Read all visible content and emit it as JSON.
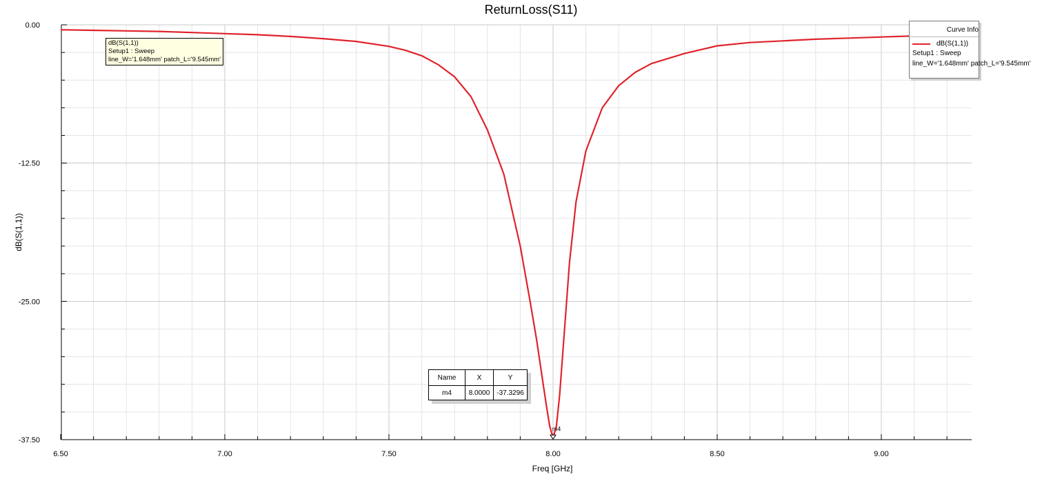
{
  "colors": {
    "trace": "#e0222c",
    "grid_major": "#c8c8c8",
    "grid_minor": "#e4e4e4",
    "note_bg": "#ffffe1"
  },
  "chart_data": {
    "type": "line",
    "title": "ReturnLoss(S11)",
    "xlabel": "Freq [GHz]",
    "ylabel": "dB(S(1,1))",
    "xlim": [
      6.5,
      9.3
    ],
    "ylim": [
      -37.5,
      0.0
    ],
    "x_ticks": [
      "6.50",
      "7.00",
      "7.50",
      "8.00",
      "8.50",
      "9.00"
    ],
    "y_ticks": [
      "0.00",
      "-12.50",
      "-25.00",
      "-37.50"
    ],
    "grid": true,
    "legend_position": "top-right",
    "series": [
      {
        "name": "dB(S(1,1))",
        "x": [
          6.5,
          6.6,
          6.7,
          6.8,
          6.9,
          7.0,
          7.1,
          7.2,
          7.3,
          7.4,
          7.5,
          7.55,
          7.6,
          7.65,
          7.7,
          7.75,
          7.8,
          7.85,
          7.9,
          7.93,
          7.95,
          7.97,
          7.98,
          7.99,
          8.0,
          8.01,
          8.02,
          8.03,
          8.05,
          8.07,
          8.1,
          8.15,
          8.2,
          8.25,
          8.3,
          8.4,
          8.5,
          8.6,
          8.7,
          8.8,
          8.9,
          9.0,
          9.1,
          9.2,
          9.3
        ],
        "values": [
          -0.45,
          -0.5,
          -0.55,
          -0.6,
          -0.7,
          -0.8,
          -0.9,
          -1.05,
          -1.25,
          -1.5,
          -1.95,
          -2.3,
          -2.8,
          -3.6,
          -4.7,
          -6.5,
          -9.5,
          -13.5,
          -20.0,
          -25.0,
          -28.5,
          -32.5,
          -34.5,
          -36.3,
          -37.33,
          -36.3,
          -33.5,
          -29.5,
          -21.5,
          -16.0,
          -11.4,
          -7.5,
          -5.5,
          -4.3,
          -3.5,
          -2.6,
          -1.9,
          -1.6,
          -1.45,
          -1.3,
          -1.2,
          -1.1,
          -1.0,
          -0.9,
          -0.85
        ]
      }
    ],
    "marker": {
      "name": "m4",
      "x": 8.0,
      "y": -37.3296
    }
  },
  "note": {
    "line1": "dB(S(1,1))",
    "line2": "Setup1 : Sweep",
    "line3": "line_W='1.648mm' patch_L='9.545mm'"
  },
  "legend": {
    "header": "Curve Info",
    "series_name": "dB(S(1,1))",
    "line2": "Setup1 : Sweep",
    "line3": "line_W='1.648mm' patch_L='9.545mm'"
  },
  "marker_table": {
    "headers": [
      "Name",
      "X",
      "Y"
    ],
    "row": [
      "m4",
      "8.0000",
      "-37.3296"
    ]
  }
}
